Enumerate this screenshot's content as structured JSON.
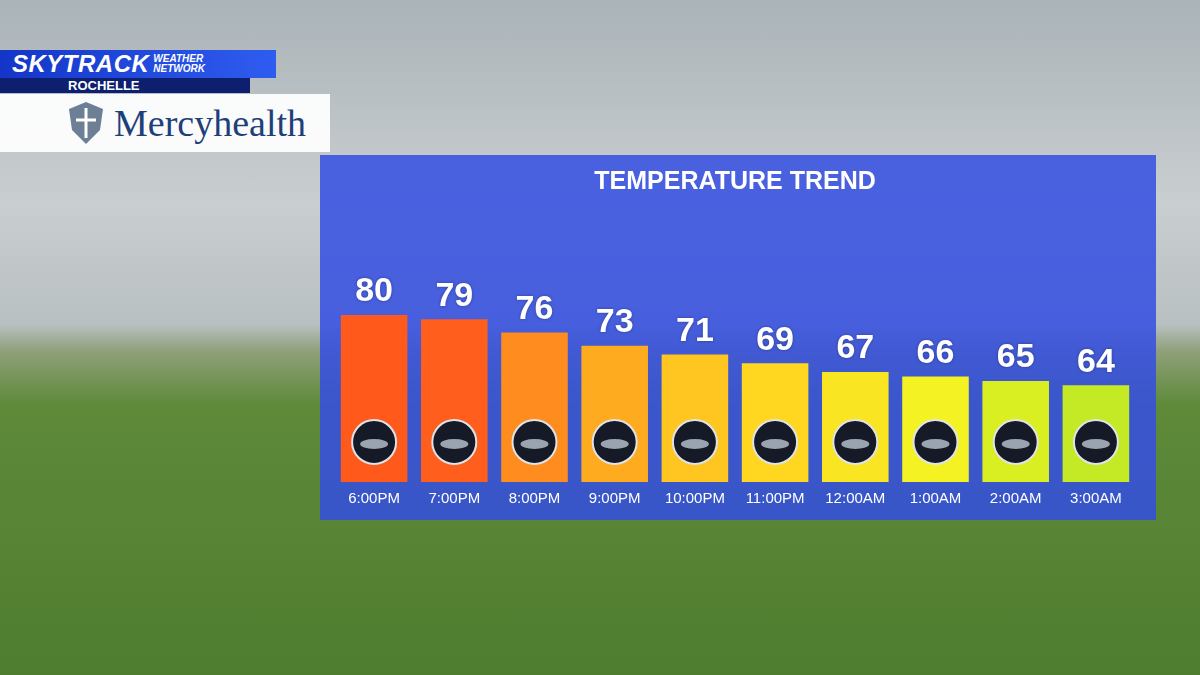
{
  "header": {
    "brand": "SKYTRACK",
    "brand_sub": "WEATHER NETWORK",
    "location": "ROCHELLE",
    "sponsor": "Mercyhealth"
  },
  "chart_data": {
    "type": "bar",
    "title": "TEMPERATURE TREND",
    "categories": [
      "6:00PM",
      "7:00PM",
      "8:00PM",
      "9:00PM",
      "10:00PM",
      "11:00PM",
      "12:00AM",
      "1:00AM",
      "2:00AM",
      "3:00AM"
    ],
    "values": [
      80,
      79,
      76,
      73,
      71,
      69,
      67,
      66,
      65,
      64
    ],
    "colors": [
      "#ff5a1c",
      "#ff5e1c",
      "#ff8c1f",
      "#ffab1f",
      "#ffc520",
      "#ffd620",
      "#f9e522",
      "#f4f223",
      "#d9ef22",
      "#c3ea24"
    ],
    "ylim": [
      42,
      90
    ],
    "grid": false,
    "data_labels": true,
    "tick_labels": "x"
  }
}
